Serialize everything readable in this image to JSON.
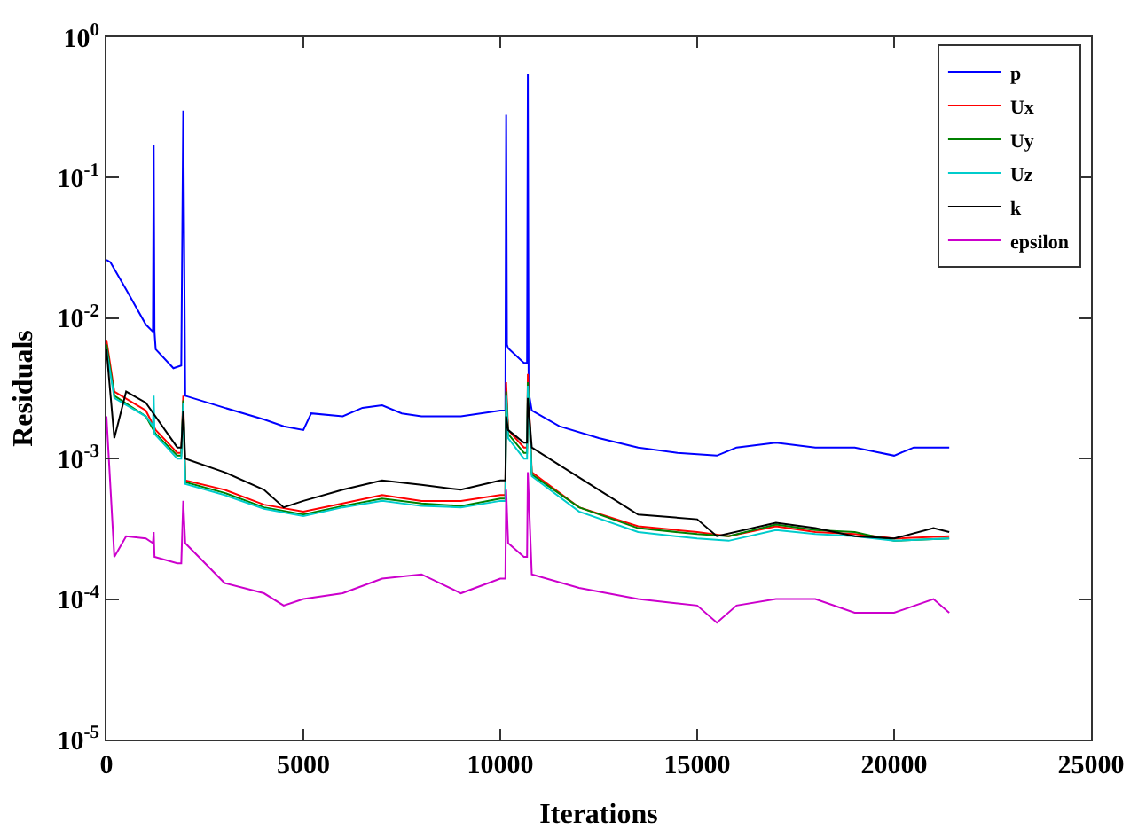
{
  "chart_data": {
    "type": "line",
    "xlabel": "Iterations",
    "ylabel": "Residuals",
    "xlim": [
      0,
      25000
    ],
    "xticks": [
      0,
      5000,
      10000,
      15000,
      20000,
      25000
    ],
    "ylim": [
      1e-05,
      1
    ],
    "yticks": [
      {
        "value": 1e-05,
        "label": "10$^{-5}$"
      },
      {
        "value": 0.0001,
        "label": "10$^{-4}$"
      },
      {
        "value": 0.001,
        "label": "10$^{-3}$"
      },
      {
        "value": 0.01,
        "label": "10$^{-2}$"
      },
      {
        "value": 0.1,
        "label": "10$^{-1}$"
      },
      {
        "value": 1,
        "label": "10$^{0}$"
      }
    ],
    "log": "y",
    "grid": false,
    "legend": "top right",
    "series": [
      {
        "name": "p",
        "color": "#0000ff",
        "x": [
          0,
          100,
          500,
          1000,
          1180,
          1200,
          1220,
          1250,
          1700,
          1900,
          1950,
          2000,
          3000,
          4000,
          4500,
          5000,
          5200,
          6000,
          6500,
          7000,
          7500,
          8000,
          9000,
          10000,
          10130,
          10150,
          10170,
          10200,
          10600,
          10680,
          10700,
          10720,
          10800,
          11500,
          12500,
          13500,
          14500,
          15500,
          16000,
          17000,
          18000,
          19000,
          20000,
          20500,
          21400
        ],
        "values": [
          0.026,
          0.025,
          0.016,
          0.009,
          0.008,
          0.17,
          0.008,
          0.006,
          0.0044,
          0.0046,
          0.3,
          0.0028,
          0.0023,
          0.0019,
          0.0017,
          0.0016,
          0.0021,
          0.002,
          0.0023,
          0.0024,
          0.0021,
          0.002,
          0.002,
          0.0022,
          0.0022,
          0.28,
          0.0065,
          0.0061,
          0.0048,
          0.0048,
          0.55,
          0.003,
          0.0022,
          0.0017,
          0.0014,
          0.0012,
          0.0011,
          0.00105,
          0.0012,
          0.0013,
          0.0012,
          0.0012,
          0.00105,
          0.0012,
          0.0012
        ]
      },
      {
        "name": "Ux",
        "color": "#ff0000",
        "x": [
          0,
          200,
          1000,
          1250,
          1800,
          1900,
          1950,
          2000,
          3000,
          4000,
          5000,
          6000,
          7000,
          8000,
          9000,
          10000,
          10130,
          10150,
          10200,
          10600,
          10680,
          10700,
          10800,
          12000,
          13500,
          15000,
          15800,
          17000,
          18000,
          19000,
          20000,
          21400
        ],
        "values": [
          0.007,
          0.003,
          0.0022,
          0.0016,
          0.0011,
          0.0011,
          0.0028,
          0.0007,
          0.0006,
          0.00047,
          0.00042,
          0.00048,
          0.00055,
          0.0005,
          0.0005,
          0.00055,
          0.00055,
          0.0035,
          0.0016,
          0.0012,
          0.0012,
          0.004,
          0.0008,
          0.00045,
          0.00033,
          0.0003,
          0.00028,
          0.00033,
          0.0003,
          0.00029,
          0.00027,
          0.00028
        ]
      },
      {
        "name": "Uy",
        "color": "#008000",
        "x": [
          0,
          200,
          1000,
          1250,
          1800,
          1900,
          1950,
          2000,
          3000,
          4000,
          5000,
          6000,
          7000,
          8000,
          9000,
          10000,
          10130,
          10150,
          10200,
          10600,
          10680,
          10700,
          10800,
          12000,
          13500,
          15000,
          15800,
          17000,
          18000,
          19000,
          20000,
          21400
        ],
        "values": [
          0.0065,
          0.0028,
          0.002,
          0.0015,
          0.00105,
          0.00105,
          0.0026,
          0.00068,
          0.00057,
          0.00045,
          0.0004,
          0.00046,
          0.00052,
          0.00048,
          0.00046,
          0.00052,
          0.00052,
          0.003,
          0.0015,
          0.0011,
          0.0011,
          0.0035,
          0.00077,
          0.00045,
          0.00032,
          0.00029,
          0.00028,
          0.00034,
          0.00031,
          0.0003,
          0.00026,
          0.00027
        ]
      },
      {
        "name": "Uz",
        "color": "#00cccc",
        "x": [
          0,
          200,
          1000,
          1180,
          1200,
          1220,
          1800,
          1900,
          1950,
          2000,
          3000,
          4000,
          5000,
          6000,
          7000,
          8000,
          9000,
          10000,
          10130,
          10150,
          10200,
          10600,
          10680,
          10700,
          10800,
          12000,
          13500,
          15000,
          15800,
          17000,
          18000,
          19000,
          20000,
          21400
        ],
        "values": [
          0.006,
          0.0027,
          0.002,
          0.0017,
          0.0028,
          0.0015,
          0.001,
          0.001,
          0.0025,
          0.00066,
          0.00055,
          0.00044,
          0.00039,
          0.00045,
          0.0005,
          0.00046,
          0.00045,
          0.0005,
          0.0005,
          0.0028,
          0.0014,
          0.001,
          0.001,
          0.0033,
          0.00075,
          0.00042,
          0.0003,
          0.00027,
          0.00026,
          0.00031,
          0.00029,
          0.00028,
          0.00026,
          0.00027
        ]
      },
      {
        "name": "k",
        "color": "#000000",
        "x": [
          0,
          200,
          500,
          1000,
          1800,
          1900,
          1950,
          2000,
          3000,
          4000,
          4500,
          5000,
          6000,
          7000,
          8000,
          9000,
          10000,
          10130,
          10150,
          10200,
          10600,
          10680,
          10700,
          10800,
          11500,
          12500,
          13500,
          15000,
          15500,
          17000,
          18000,
          19000,
          20000,
          21000,
          21400
        ],
        "values": [
          0.006,
          0.0014,
          0.003,
          0.0025,
          0.0012,
          0.0012,
          0.0022,
          0.001,
          0.0008,
          0.0006,
          0.00045,
          0.0005,
          0.0006,
          0.0007,
          0.00065,
          0.0006,
          0.0007,
          0.0007,
          0.002,
          0.0016,
          0.0013,
          0.0013,
          0.0027,
          0.0012,
          0.0009,
          0.0006,
          0.0004,
          0.00037,
          0.00028,
          0.00035,
          0.00032,
          0.00028,
          0.00027,
          0.00032,
          0.0003
        ]
      },
      {
        "name": "epsilon",
        "color": "#cc00cc",
        "x": [
          0,
          200,
          500,
          1000,
          1180,
          1200,
          1220,
          1800,
          1900,
          1950,
          2000,
          3000,
          4000,
          4500,
          5000,
          6000,
          7000,
          8000,
          9000,
          10000,
          10130,
          10150,
          10200,
          10600,
          10680,
          10700,
          10800,
          12000,
          13500,
          15000,
          15500,
          16000,
          17000,
          18000,
          19000,
          20000,
          21000,
          21400
        ],
        "values": [
          0.002,
          0.0002,
          0.00028,
          0.00027,
          0.00025,
          0.0003,
          0.0002,
          0.00018,
          0.00018,
          0.0005,
          0.00025,
          0.00013,
          0.00011,
          9e-05,
          0.0001,
          0.00011,
          0.00014,
          0.00015,
          0.00011,
          0.00014,
          0.00014,
          0.0006,
          0.00025,
          0.0002,
          0.0002,
          0.0008,
          0.00015,
          0.00012,
          0.0001,
          9e-05,
          6.8e-05,
          9e-05,
          0.0001,
          0.0001,
          8e-05,
          8e-05,
          0.0001,
          8e-05
        ]
      }
    ]
  }
}
